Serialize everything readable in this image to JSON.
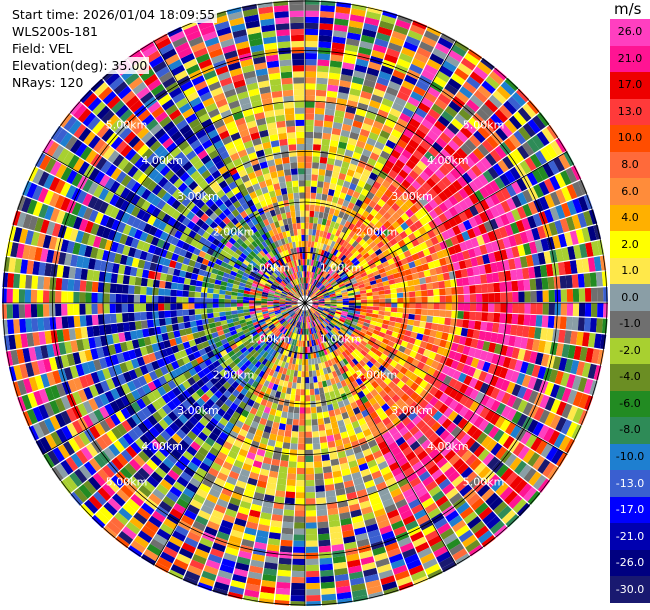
{
  "header": {
    "start_time": "Start time: 2026/01/04 18:09:55",
    "instrument": "WLS200s-181",
    "field": "Field: VEL",
    "elevation": "Elevation(deg): 35.00",
    "nrays": "NRays: 120"
  },
  "chart_data": {
    "type": "heatmap",
    "projection": "polar-ppi",
    "field": "VEL",
    "elevation_deg": 35.0,
    "n_rays": 120,
    "max_range_km": 6.0,
    "range_rings_km": [
      1,
      2,
      3,
      4,
      5,
      6
    ],
    "ring_labels": [
      "1.00km",
      "2.00km",
      "3.00km",
      "4.00km",
      "5.00km"
    ],
    "colorbar": {
      "unit": "m/s",
      "vmin": -30.0,
      "vmax": 30.0,
      "ticks": [
        "26.0",
        "21.0",
        "17.0",
        "13.0",
        "10.0",
        "8.0",
        "6.0",
        "4.0",
        "2.0",
        "1.0",
        "0.0",
        "-1.0",
        "-2.0",
        "-4.0",
        "-6.0",
        "-8.0",
        "-10.0",
        "-13.0",
        "-17.0",
        "-21.0",
        "-26.0",
        "-30.0"
      ],
      "colors": [
        "#ff3fc0",
        "#ff1493",
        "#ee0000",
        "#ff3a3a",
        "#ff4d00",
        "#ff6a3a",
        "#ff8c3a",
        "#ffb000",
        "#ffff00",
        "#ffe84a",
        "#8a9ea6",
        "#6f6f6f",
        "#a8d030",
        "#6b8e23",
        "#228b22",
        "#2e8b57",
        "#1e7fd0",
        "#3a5fd0",
        "#0000ff",
        "#0000b0",
        "#000080",
        "#191970"
      ]
    },
    "field_pattern": {
      "inner_core_km": 1.0,
      "outer_noise_km": 4.5,
      "positive_sector_deg": [
        30,
        150
      ],
      "negative_sector_deg": [
        210,
        330
      ]
    }
  }
}
